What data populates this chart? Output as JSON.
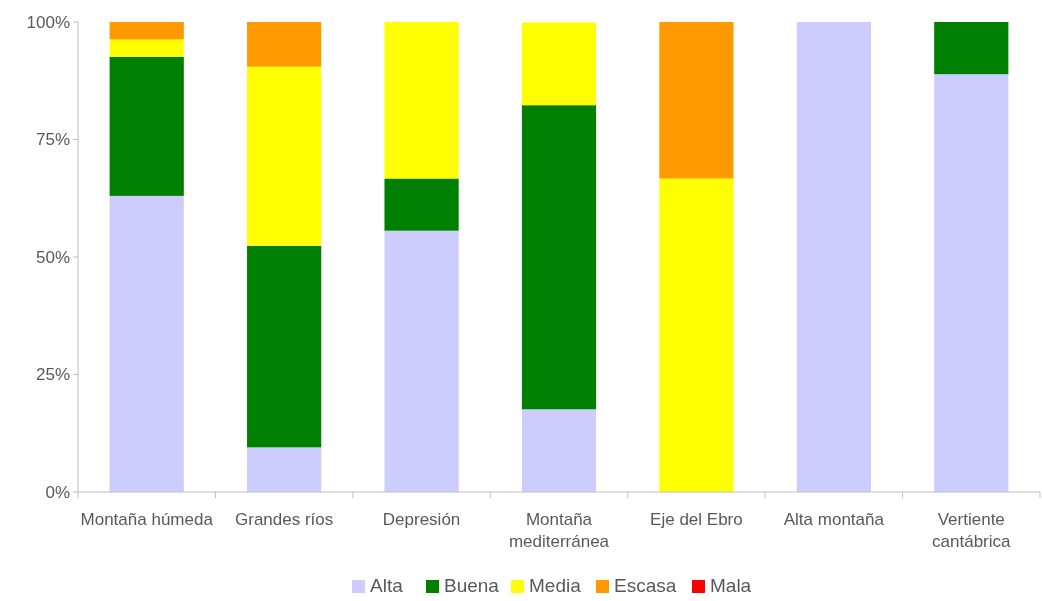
{
  "chart_data": {
    "type": "bar",
    "stacked": true,
    "categories": [
      "Montaña húmeda",
      "Grandes ríos",
      "Depresión",
      "Montaña mediterránea",
      "Eje del Ebro",
      "Alta montaña",
      "Vertiente cantábrica"
    ],
    "series": [
      {
        "name": "Alta",
        "color": "#ccccff",
        "values": [
          63.0,
          9.5,
          55.6,
          17.6,
          0,
          100,
          88.9
        ]
      },
      {
        "name": "Buena",
        "color": "#008000",
        "values": [
          29.6,
          42.9,
          11.1,
          64.7,
          0,
          0,
          11.1
        ]
      },
      {
        "name": "Media",
        "color": "#ffff00",
        "values": [
          3.7,
          38.1,
          33.3,
          17.6,
          66.7,
          0,
          0
        ]
      },
      {
        "name": "Escasa",
        "color": "#ff9900",
        "values": [
          3.7,
          9.5,
          0,
          0,
          33.3,
          0,
          0
        ]
      },
      {
        "name": "Mala",
        "color": "#ff0000",
        "values": [
          0,
          0,
          0,
          0,
          0,
          0,
          0
        ]
      }
    ],
    "ylim": [
      0,
      100
    ],
    "yticks": [
      {
        "value": 0,
        "label": "0%"
      },
      {
        "value": 25,
        "label": "25%"
      },
      {
        "value": 50,
        "label": "50%"
      },
      {
        "value": 75,
        "label": "75%"
      },
      {
        "value": 100,
        "label": "100%"
      }
    ],
    "grid": false,
    "legend": "bottom"
  }
}
